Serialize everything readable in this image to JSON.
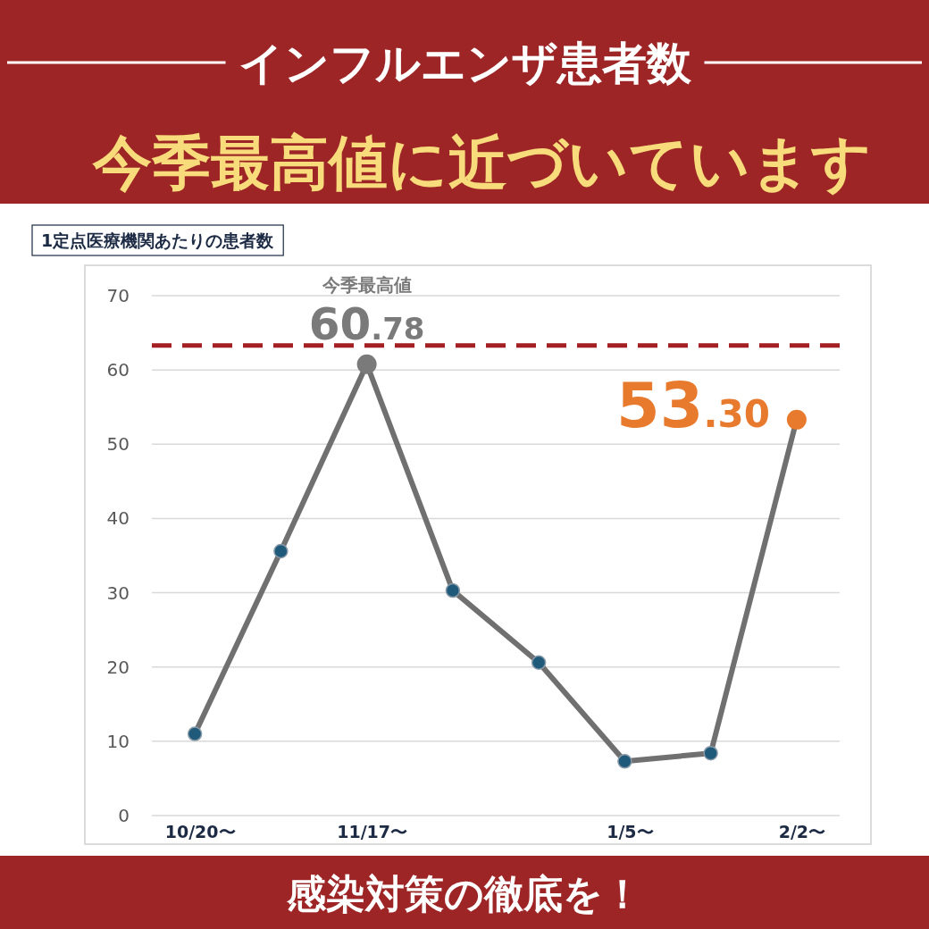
{
  "chart_data": {
    "type": "line",
    "title": "インフルエンザ患者数",
    "subtitle": "今季最高値に近づいています",
    "ylabel": "1定点医療機関あたりの患者数",
    "annotations": [
      "今季最高値",
      "感染対策の徹底を！"
    ],
    "categories": [
      "10/20〜",
      null,
      "11/17〜",
      null,
      null,
      "1/5〜",
      null,
      "2/2〜"
    ],
    "series": [
      {
        "color": "#707070",
        "colors": [
          "#1f5a7a",
          "#1f5a7a",
          "#7a7a7a",
          "#1f5a7a",
          "#1f5a7a",
          "#1f5a7a",
          "#1f5a7a",
          "#e87a2e"
        ],
        "values": [
          11,
          35.6,
          60.78,
          30.3,
          20.6,
          7.3,
          8.4,
          53.3
        ],
        "value_labels": [
          null,
          null,
          "60.78",
          null,
          null,
          null,
          null,
          "53.30"
        ]
      }
    ],
    "ylim": [
      0,
      70
    ],
    "yticks": [
      0,
      10,
      20,
      30,
      40,
      50,
      60,
      70
    ],
    "grid": "y",
    "marker": "circle",
    "line_style": "solid",
    "ref_lines": [
      {
        "axis": "y",
        "value": 63.3,
        "color": "#a31f24",
        "line_style": "dashed"
      }
    ]
  }
}
